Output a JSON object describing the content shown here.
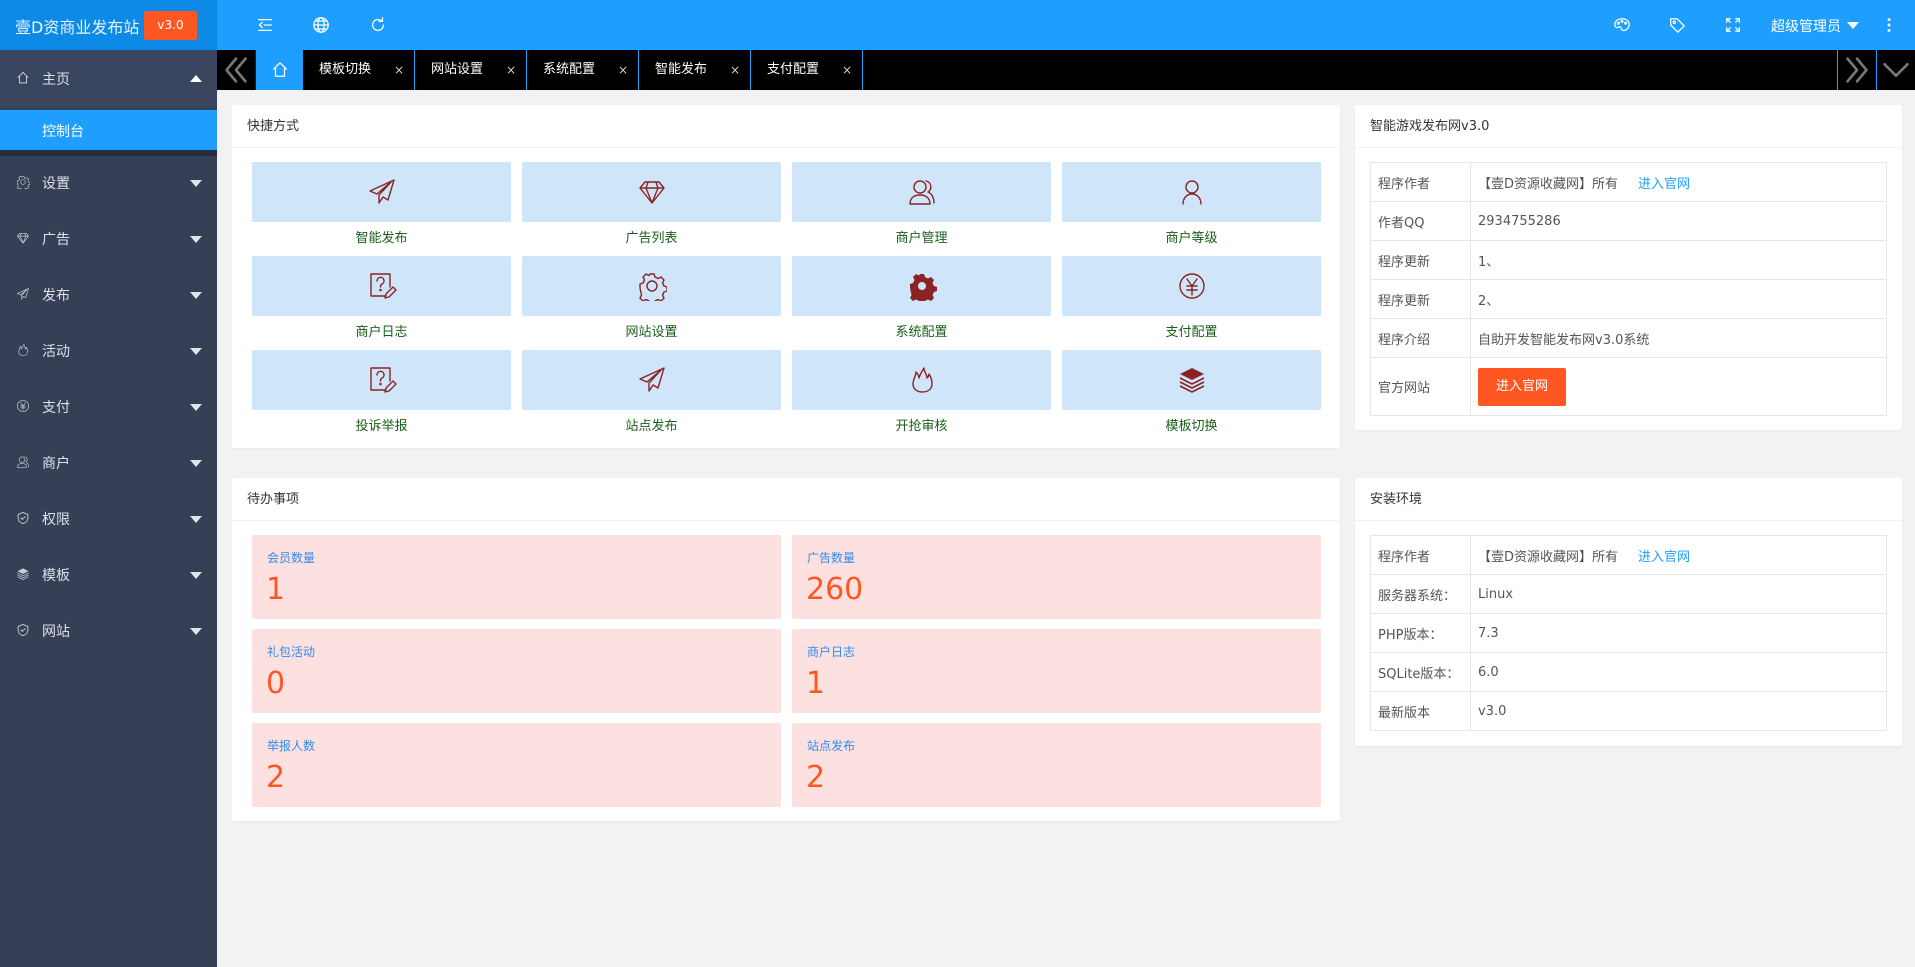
{
  "app": {
    "title": "壹D资商业发布站",
    "version_badge": "v3.0"
  },
  "header": {
    "left_icons": [
      "menu-fold-icon",
      "globe-icon",
      "refresh-icon"
    ],
    "right_icons": [
      "theme-palette-icon",
      "tag-icon",
      "fullscreen-icon"
    ],
    "user": "超级管理员",
    "more_icon": "more-vertical-icon"
  },
  "tabs": {
    "home_icon": "home-icon",
    "items": [
      {
        "label": "模板切换"
      },
      {
        "label": "网站设置"
      },
      {
        "label": "系统配置"
      },
      {
        "label": "智能发布"
      },
      {
        "label": "支付配置"
      }
    ],
    "close_glyph": "×"
  },
  "sidebar": {
    "home": {
      "label": "主页",
      "icon": "home-icon",
      "child": "控制台"
    },
    "items": [
      {
        "label": "设置",
        "icon": "gear-icon"
      },
      {
        "label": "广告",
        "icon": "diamond-icon"
      },
      {
        "label": "发布",
        "icon": "paper-plane-icon"
      },
      {
        "label": "活动",
        "icon": "fire-icon"
      },
      {
        "label": "支付",
        "icon": "yen-icon"
      },
      {
        "label": "商户",
        "icon": "users-icon"
      },
      {
        "label": "权限",
        "icon": "shield-icon"
      },
      {
        "label": "模板",
        "icon": "layers-icon"
      },
      {
        "label": "网站",
        "icon": "shield-icon"
      }
    ]
  },
  "shortcuts": {
    "title": "快捷方式",
    "items": [
      {
        "label": "智能发布",
        "icon": "paper-plane-icon"
      },
      {
        "label": "广告列表",
        "icon": "diamond-icon"
      },
      {
        "label": "商户管理",
        "icon": "users-icon"
      },
      {
        "label": "商户等级",
        "icon": "user-icon"
      },
      {
        "label": "商户日志",
        "icon": "help-edit-icon"
      },
      {
        "label": "网站设置",
        "icon": "gear-icon"
      },
      {
        "label": "系统配置",
        "icon": "gear-solid-icon"
      },
      {
        "label": "支付配置",
        "icon": "yen-icon"
      },
      {
        "label": "投诉举报",
        "icon": "help-edit-icon"
      },
      {
        "label": "站点发布",
        "icon": "paper-plane-icon"
      },
      {
        "label": "开抢审核",
        "icon": "fire-icon"
      },
      {
        "label": "模板切换",
        "icon": "layers-icon"
      }
    ]
  },
  "todo": {
    "title": "待办事项",
    "items": [
      {
        "label": "会员数量",
        "value": "1"
      },
      {
        "label": "广告数量",
        "value": "260"
      },
      {
        "label": "礼包活动",
        "value": "0"
      },
      {
        "label": "商户日志",
        "value": "1"
      },
      {
        "label": "举报人数",
        "value": "2"
      },
      {
        "label": "站点发布",
        "value": "2"
      }
    ]
  },
  "info": {
    "title": "智能游戏发布网v3.0",
    "rows": [
      {
        "key": "程序作者",
        "value": "【壹D资源收藏网】所有",
        "link": "进入官网"
      },
      {
        "key": "作者QQ",
        "value": "2934755286"
      },
      {
        "key": "程序更新",
        "value": "1、"
      },
      {
        "key": "程序更新",
        "value": "2、"
      },
      {
        "key": "程序介绍",
        "value": "自助开发智能发布网v3.0系统"
      },
      {
        "key": "官方网站",
        "button": "进入官网"
      }
    ]
  },
  "env": {
    "title": "安装环境",
    "rows": [
      {
        "key": "程序作者",
        "value": "【壹D资源收藏网】所有",
        "link": "进入官网"
      },
      {
        "key": "服务器系统：",
        "value": "Linux"
      },
      {
        "key": "PHP版本：",
        "value": "7.3"
      },
      {
        "key": "SQLite版本：",
        "value": "6.0"
      },
      {
        "key": "最新版本",
        "value": "v3.0"
      }
    ]
  },
  "colors": {
    "header": "#1e9fff",
    "sidebar": "#353f56",
    "accent": "#ff5722",
    "tile": "#cfe5f9",
    "stat": "#fde0e0",
    "icon": "#8b2323"
  }
}
